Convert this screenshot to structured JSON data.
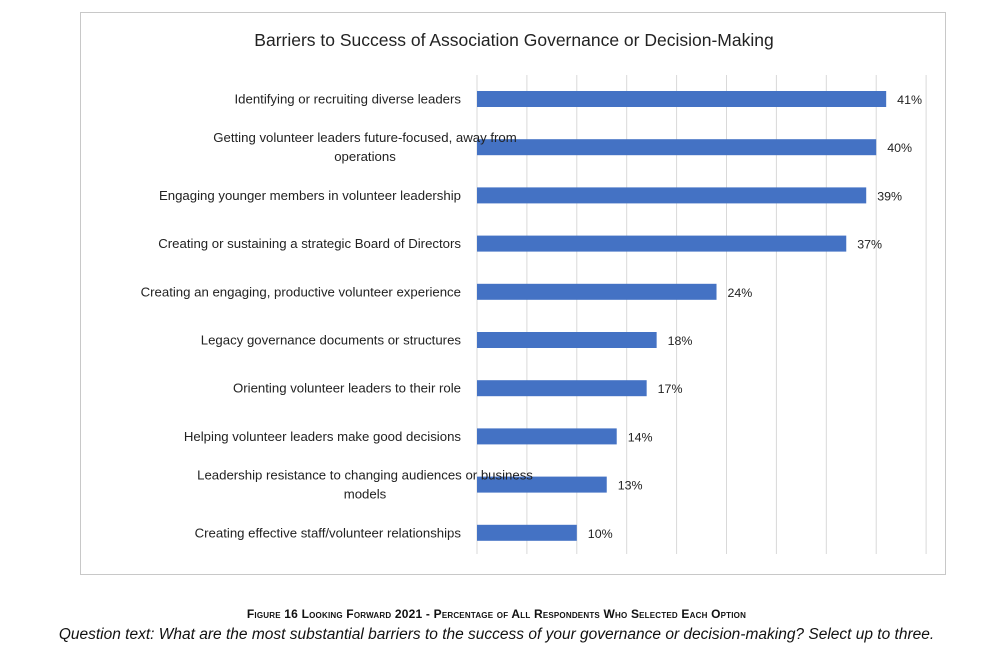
{
  "chart_data": {
    "type": "bar",
    "orientation": "horizontal",
    "title": "Barriers to Success of Association Governance or Decision-Making",
    "categories": [
      "Identifying or recruiting diverse leaders",
      "Getting volunteer leaders future-focused, away from operations",
      "Engaging younger members in volunteer leadership",
      "Creating or sustaining a strategic Board of Directors",
      "Creating an engaging, productive volunteer experience",
      "Legacy governance documents or structures",
      "Orienting volunteer leaders to their role",
      "Helping volunteer leaders make good decisions",
      "Leadership resistance to changing audiences or business models",
      "Creating effective staff/volunteer relationships"
    ],
    "category_lines": [
      [
        "Identifying or recruiting diverse leaders"
      ],
      [
        "Getting volunteer leaders future-focused, away from",
        "operations"
      ],
      [
        "Engaging younger members in volunteer leadership"
      ],
      [
        "Creating or sustaining a strategic Board of Directors"
      ],
      [
        "Creating an engaging, productive volunteer experience"
      ],
      [
        "Legacy governance documents or structures"
      ],
      [
        "Orienting volunteer leaders to their role"
      ],
      [
        "Helping volunteer leaders make good decisions"
      ],
      [
        "Leadership resistance to changing audiences or business",
        "models"
      ],
      [
        "Creating effective staff/volunteer relationships"
      ]
    ],
    "values": [
      41,
      40,
      39,
      37,
      24,
      18,
      17,
      14,
      13,
      10
    ],
    "value_labels": [
      "41%",
      "40%",
      "39%",
      "37%",
      "24%",
      "18%",
      "17%",
      "14%",
      "13%",
      "10%"
    ],
    "xlim": [
      0,
      45
    ],
    "x_gridline_step": 5,
    "grid": "vertical",
    "axis_tick_labels_shown": false,
    "legend": "none",
    "bar_color": "#4472C4",
    "grid_color": "#d9d9d9"
  },
  "caption": {
    "figure_title": "Figure 16 Looking Forward 2021 - Percentage of All Respondents Who Selected Each Option",
    "question_text": "Question text: What are the most substantial barriers to the success of your governance or decision-making? Select up to three."
  }
}
